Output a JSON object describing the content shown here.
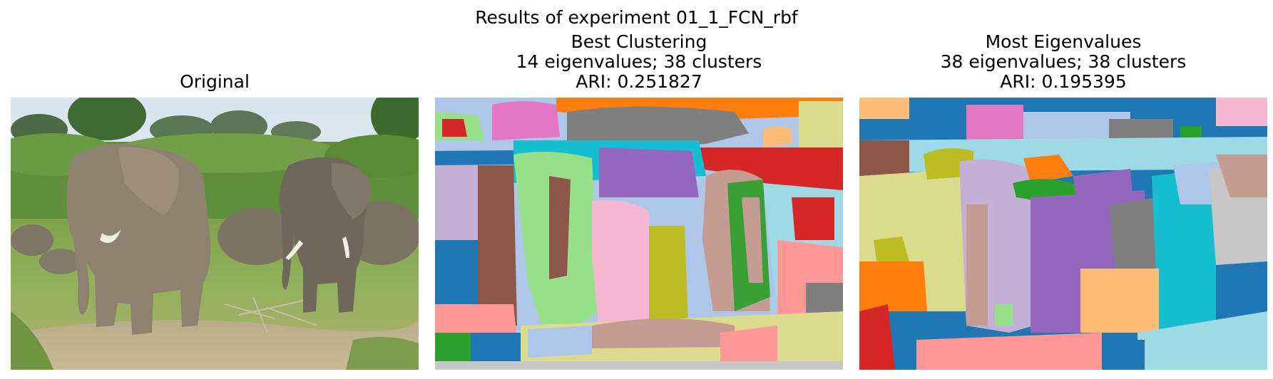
{
  "figure": {
    "suptitle": "Results of experiment 01_1_FCN_rbf"
  },
  "panels": [
    {
      "title_lines": [
        "Original"
      ],
      "image": "photo of elephants on grassland"
    },
    {
      "title_lines": [
        "Best Clustering",
        "14 eigenvalues; 38 clusters",
        "ARI: 0.251827"
      ],
      "image": "segmentation map"
    },
    {
      "title_lines": [
        "Most Eigenvalues",
        "38 eigenvalues; 38 clusters",
        "ARI: 0.195395"
      ],
      "image": "segmentation map"
    }
  ]
}
